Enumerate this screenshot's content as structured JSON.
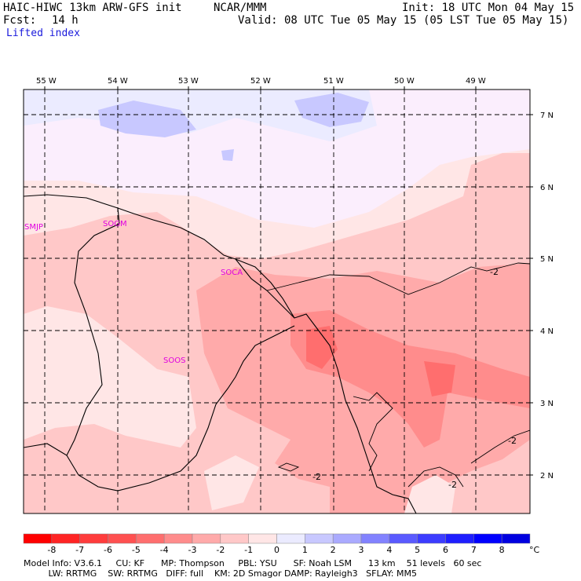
{
  "header": {
    "model": "HAIC-HIWC 13km ARW-GFS init",
    "org": "NCAR/MMM",
    "init": "Init: 18 UTC Mon 04 May 15",
    "fcst_label": "Fcst:",
    "fcst_value": "14 h",
    "valid": "Valid: 08 UTC Tue 05 May 15 (05 LST Tue 05 May 15)",
    "field": "Lifted index"
  },
  "map": {
    "longitudes": [
      "55 W",
      "54 W",
      "53 W",
      "52 W",
      "51 W",
      "50 W",
      "49 W"
    ],
    "latitudes": [
      "7 N",
      "6 N",
      "5 N",
      "4 N",
      "3 N",
      "2 N"
    ],
    "stations": [
      "SMJP",
      "SOGM",
      "SOCA",
      "SOOS"
    ],
    "contour_labels": [
      "-2",
      "-2",
      "-2",
      "-2"
    ]
  },
  "colorbar": {
    "ticks": [
      "-8",
      "-7",
      "-6",
      "-5",
      "-4",
      "-3",
      "-2",
      "-1",
      "0",
      "1",
      "2",
      "3",
      "4",
      "5",
      "6",
      "7",
      "8"
    ],
    "unit": "°C",
    "colors": [
      "#ff0000",
      "#ff2424",
      "#ff3c3c",
      "#ff5050",
      "#ff6e6e",
      "#ff8c8c",
      "#ffaaaa",
      "#ffc8c8",
      "#ffe6e6",
      "#ebebff",
      "#c8c8ff",
      "#aaaaff",
      "#8282ff",
      "#5a5aff",
      "#3c3cff",
      "#1e1eff",
      "#0000ff"
    ]
  },
  "footer": {
    "line1": "Model Info: V3.6.1     CU: KF      MP: Thompson     PBL: YSU      SF: Noah LSM      13 km    51 levels   60 sec",
    "line2": "         LW: RRTMG    SW: RRTMG   DIFF: full    KM: 2D Smagor DAMP: Rayleigh3   SFLAY: MM5"
  }
}
